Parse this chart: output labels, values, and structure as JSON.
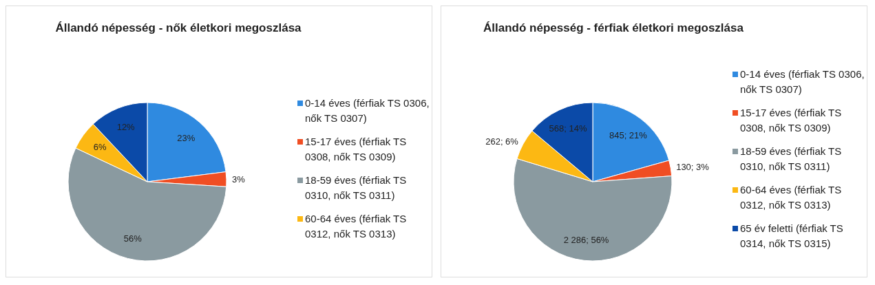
{
  "chart_data": [
    {
      "type": "pie",
      "title": "Állandó népesség - nők életkori megoszlása",
      "categories": [
        "0-14 éves (férfiak TS 0306, nők TS 0307)",
        "15-17 éves (férfiak TS 0308, nők TS 0309)",
        "18-59 éves (férfiak TS 0310, nők TS 0311)",
        "60-64 éves (férfiak TS 0312, nők TS 0313)",
        null
      ],
      "values": [
        23,
        3,
        56,
        6,
        12
      ],
      "colors": [
        "#2f8ae0",
        "#f04e23",
        "#8a9aa0",
        "#fcb813",
        "#0b4aa8"
      ],
      "value_labels": [
        "23%",
        "3%",
        "56%",
        "6%",
        "12%"
      ],
      "legend": "right"
    },
    {
      "type": "pie",
      "title": "Állandó népesség - férfiak életkori megoszlása",
      "categories": [
        "0-14 éves (férfiak TS 0306, nők TS 0307)",
        "15-17 éves (férfiak TS 0308, nők TS 0309)",
        "18-59 éves (férfiak TS 0310, nők TS 0311)",
        "60-64 éves (férfiak TS 0312, nők TS 0313)",
        "65 év feletti (férfiak TS 0314, nők TS 0315)"
      ],
      "values": [
        845,
        130,
        2286,
        262,
        568
      ],
      "colors": [
        "#2f8ae0",
        "#f04e23",
        "#8a9aa0",
        "#fcb813",
        "#0b4aa8"
      ],
      "value_labels": [
        "845; 21%",
        "130; 3%",
        "2 286; 56%",
        "262; 6%",
        "568; 14%"
      ],
      "legend": "right"
    }
  ]
}
